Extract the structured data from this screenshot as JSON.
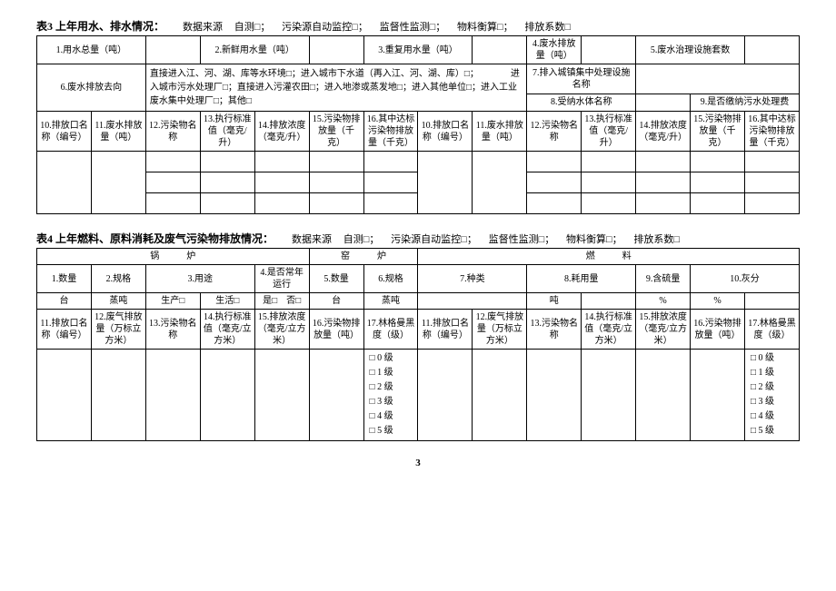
{
  "page_number": "3",
  "table3": {
    "title": "表3 上年用水、排水情况：",
    "meta_label": "数据来源",
    "meta_opts": [
      "自测□；",
      "污染源自动监控□；",
      "监督性监测□；",
      "物料衡算□；",
      "排放系数□"
    ],
    "row1": {
      "c1": "1.用水总量（吨）",
      "c2": "2.新鲜用水量（吨）",
      "c3": "3.重复用水量（吨）",
      "c4": "4.废水排放量（吨）",
      "c5": "5.废水治理设施套数"
    },
    "row2": {
      "label": "6.废水排放去向",
      "direction": "直接进入江、河、湖、库等水环境□；进入城市下水道（再入江、河、湖、库）□；　　　　进入城市污水处理厂□；直接进入污灌农田□；进入地渗或蒸发地□；进入其他单位□；进入工业废水集中处理厂□；其他□",
      "r7": "7.排入城镇集中处理设施名称",
      "r8": "8.受纳水体名称",
      "r9": "9.是否缴纳污水处理费"
    },
    "hdrs": [
      "10.排放口名称（编号）",
      "11.废水排放量（吨）",
      "12.污染物名称",
      "13.执行标准值（毫克/升）",
      "14.排放浓度（毫克/升）",
      "15.污染物排放量（千克）",
      "16.其中达标污染物排放量（千克）",
      "10.排放口名称（编号）",
      "11.废水排放量（吨）",
      "12.污染物名称",
      "13.执行标准值（毫克/升）",
      "14.排放浓度（毫克/升）",
      "15.污染物排放量（千克）",
      "16.其中达标污染物排放量（千克）"
    ]
  },
  "table4": {
    "title": "表4 上年燃料、原料消耗及废气污染物排放情况：",
    "meta_label": "数据来源",
    "meta_opts": [
      "自测□；",
      "污染源自动监控□；",
      "监督性监测□；",
      "物料衡算□；",
      "排放系数□"
    ],
    "sections": {
      "s1": "锅　　　炉",
      "s2": "窑　　　炉",
      "s3": "燃　　　料"
    },
    "row2": {
      "c1": "1.数量",
      "c2": "2.规格",
      "c3": "3.用途",
      "c4": "4.是否常年运行",
      "c5": "5.数量",
      "c6": "6.规格",
      "c7": "7.种类",
      "c8": "8.耗用量",
      "c9": "9.含硫量",
      "c10": "10.灰分"
    },
    "row3": {
      "u1": "台",
      "u2": "蒸吨",
      "u3a": "生产□",
      "u3b": "生活□",
      "u4a": "是□",
      "u4b": "否□",
      "u5": "台",
      "u6": "蒸吨",
      "u8": "吨",
      "u9": "%",
      "u10": "%"
    },
    "hdrs": [
      "11.排放口名称（编号）",
      "12.废气排放量（万标立方米）",
      "13.污染物名称",
      "14.执行标准值（毫克/立方米）",
      "15.排放浓度（毫克/立方米）",
      "16.污染物排放量（吨）",
      "17.林格曼黑度（级）",
      "11.排放口名称（编号）",
      "12.废气排放量（万标立方米）",
      "13.污染物名称",
      "14.执行标准值（毫克/立方米）",
      "15.排放浓度（毫克/立方米）",
      "16.污染物排放量（吨）",
      "17.林格曼黑度（级）"
    ],
    "levels": [
      "□ 0 级",
      "□ 1 级",
      "□ 2 级",
      "□ 3 级",
      "□ 4 级",
      "□ 5 级"
    ]
  }
}
